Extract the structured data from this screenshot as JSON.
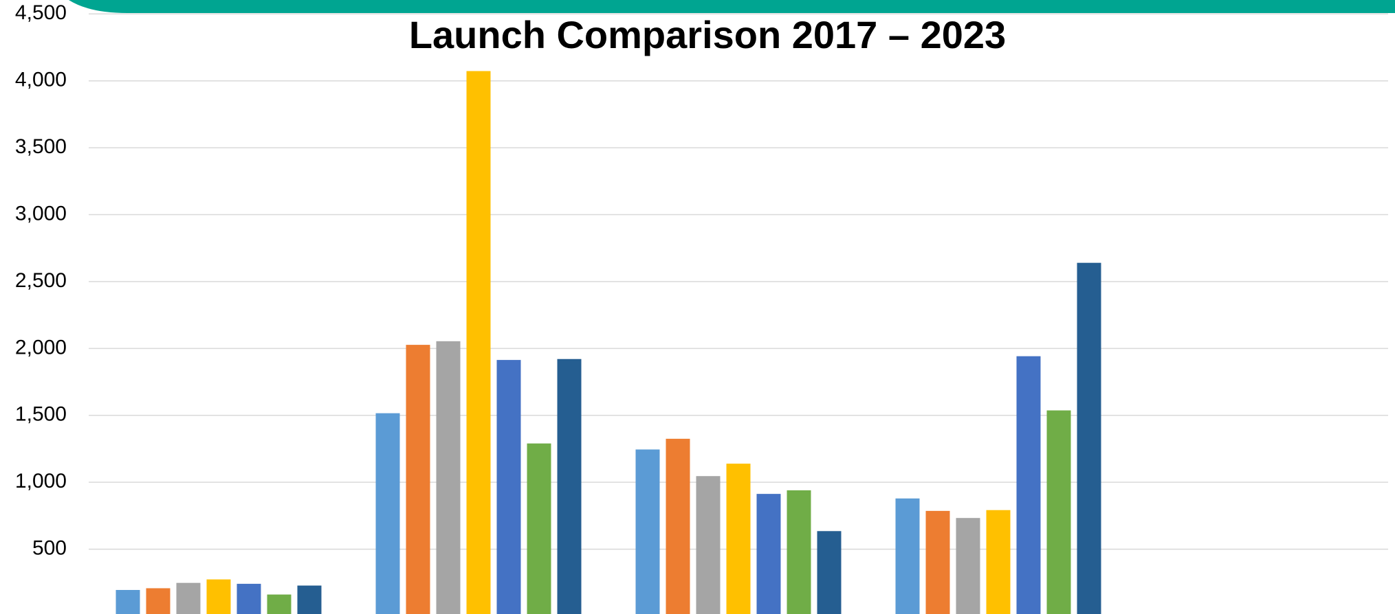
{
  "chart_data": {
    "type": "bar",
    "title": "Launch Comparison 2017 – 2023",
    "categories": [
      null,
      null,
      null,
      null,
      null
    ],
    "series": [
      {
        "color": "#5b9bd5",
        "values": [
          195,
          1516,
          1245,
          879,
          null
        ]
      },
      {
        "color": "#ed7d31",
        "values": [
          208,
          2027,
          1325,
          786,
          null
        ]
      },
      {
        "color": "#a5a5a5",
        "values": [
          248,
          2054,
          1046,
          733,
          null
        ]
      },
      {
        "color": "#ffc000",
        "values": [
          274,
          4073,
          1139,
          792,
          null
        ]
      },
      {
        "color": "#4472c4",
        "values": [
          241,
          1914,
          913,
          1942,
          null
        ]
      },
      {
        "color": "#70ad47",
        "values": [
          161,
          1290,
          940,
          1537,
          null
        ]
      },
      {
        "color": "#255e91",
        "values": [
          228,
          1921,
          635,
          2640,
          null
        ]
      }
    ],
    "ylim": [
      0,
      4500
    ],
    "yticks": [
      500,
      {
        "value": 1000,
        "label": "1,000"
      },
      {
        "value": 1500,
        "label": "1,500"
      },
      {
        "value": 2000,
        "label": "2,000"
      },
      {
        "value": 2500,
        "label": "2,500"
      },
      {
        "value": 3000,
        "label": "3,000"
      },
      {
        "value": 3500,
        "label": "3,500"
      },
      {
        "value": 4000,
        "label": "4,000"
      },
      {
        "value": 4500,
        "label": "4,500"
      }
    ],
    "grid": true
  }
}
